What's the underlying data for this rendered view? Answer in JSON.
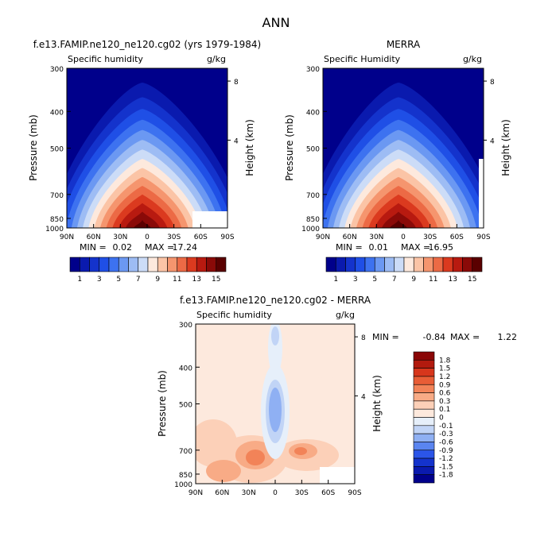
{
  "figure_title": "ANN",
  "colors": {
    "seq": [
      "#00008b",
      "#0a1aae",
      "#1433cc",
      "#1f4fe6",
      "#3d72f0",
      "#6b98f2",
      "#9dbcf4",
      "#ccdcf7",
      "#fde9dd",
      "#fbc4a6",
      "#f5956e",
      "#ec6a45",
      "#db3a1f",
      "#b81a10",
      "#8a0a08",
      "#5a0000"
    ],
    "diff": [
      "#00008b",
      "#0a1aae",
      "#1433cc",
      "#2b55e8",
      "#5a85f0",
      "#8fb0f3",
      "#c1d4f6",
      "#e6effa",
      "#fde9dd",
      "#fcd0b8",
      "#f8ab86",
      "#f28358",
      "#e85d36",
      "#d7361c",
      "#b21a0e",
      "#8a0606"
    ]
  },
  "chart_data": [
    {
      "type": "contour",
      "title": "f.e13.FAMIP.ne120_ne120.cg02 (yrs 1979-1984)",
      "left_label": "Specific humidity",
      "right_label": "g/kg",
      "xlabel": "",
      "ylabel": "Pressure (mb)",
      "ylabel_right": "Height (km)",
      "x_ticks": [
        "90N",
        "60N",
        "30N",
        "0",
        "30S",
        "60S",
        "90S"
      ],
      "y_ticks": [
        "300",
        "400",
        "500",
        "700",
        "850",
        "1000"
      ],
      "y_ticks_right": [
        "8",
        "4"
      ],
      "min_label": "MIN =",
      "min_value": "0.02",
      "max_label": "MAX =",
      "max_value": "17.24",
      "colorbar_labels": [
        "1",
        "3",
        "5",
        "7",
        "9",
        "11",
        "13",
        "15"
      ]
    },
    {
      "type": "contour",
      "title": "MERRA",
      "left_label": "Specific Humidity",
      "right_label": "g/kg",
      "xlabel": "",
      "ylabel": "Pressure (mb)",
      "ylabel_right": "Height (km)",
      "x_ticks": [
        "90N",
        "60N",
        "30N",
        "0",
        "30S",
        "60S",
        "90S"
      ],
      "y_ticks": [
        "300",
        "400",
        "500",
        "700",
        "850",
        "1000"
      ],
      "y_ticks_right": [
        "8",
        "4"
      ],
      "min_label": "MIN =",
      "min_value": "0.01",
      "max_label": "MAX =",
      "max_value": "16.95",
      "colorbar_labels": [
        "1",
        "3",
        "5",
        "7",
        "9",
        "11",
        "13",
        "15"
      ]
    },
    {
      "type": "contour",
      "title": "f.e13.FAMIP.ne120_ne120.cg02 - MERRA",
      "left_label": "Specific humidity",
      "right_label": "g/kg",
      "xlabel": "",
      "ylabel": "Pressure (mb)",
      "ylabel_right": "Height (km)",
      "x_ticks": [
        "90N",
        "60N",
        "30N",
        "0",
        "30S",
        "60S",
        "90S"
      ],
      "y_ticks": [
        "300",
        "400",
        "500",
        "700",
        "850",
        "1000"
      ],
      "y_ticks_right": [
        "8",
        "4"
      ],
      "min_label": "MIN =",
      "min_value": "-0.84",
      "max_label": "MAX =",
      "max_value": "1.22",
      "colorbar_labels": [
        "1.8",
        "1.5",
        "1.2",
        "0.9",
        "0.6",
        "0.3",
        "0.1",
        "0",
        "-0.1",
        "-0.3",
        "-0.6",
        "-0.9",
        "-1.2",
        "-1.5",
        "-1.8"
      ]
    }
  ]
}
